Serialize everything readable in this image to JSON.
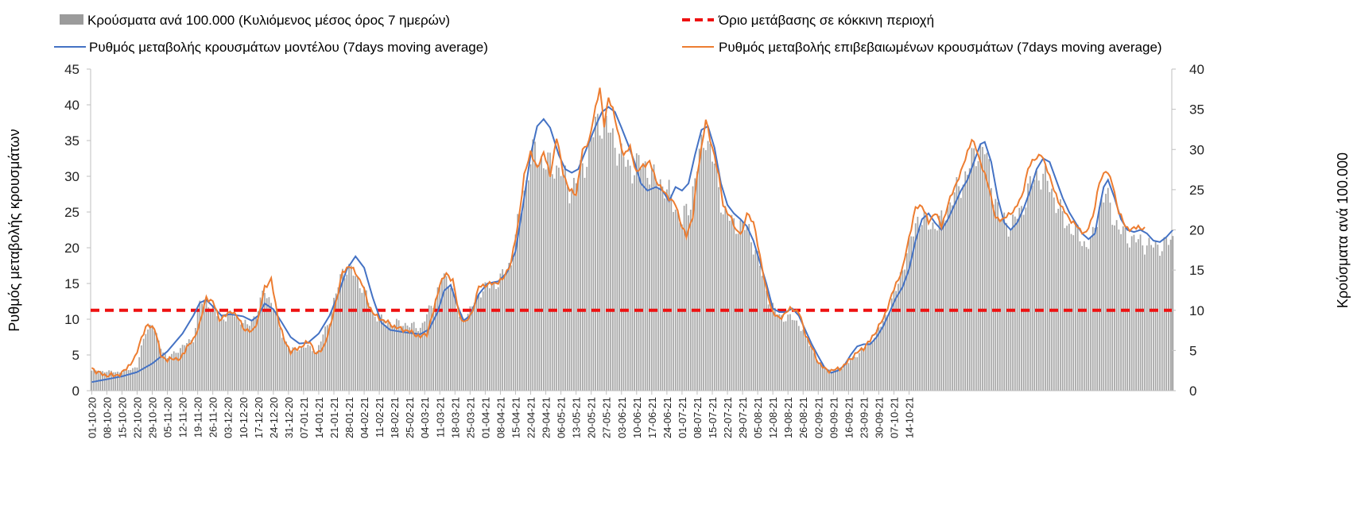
{
  "chart_data": {
    "type": "bar+line",
    "title": "",
    "legend": [
      {
        "key": "bars",
        "label": "Κρούσματα ανά 100.000 (Κυλιόμενος μέσος όρος 7 ημερών)"
      },
      {
        "key": "threshold",
        "label": "Όριο μετάβασης σε κόκκινη περιοχή"
      },
      {
        "key": "model",
        "label": "Ρυθμός μεταβολής κρουσμάτων μοντέλου (7days moving average)"
      },
      {
        "key": "confirmed",
        "label": "Ρυθμός μεταβολής επιβεβαιωμένων κρουσμάτων (7days moving average)"
      }
    ],
    "ylabel_left": "Ρυθμός μεταβολής κρουσμάτων",
    "ylabel_right": "Κρούσματα ανά 100.000",
    "ylim_left": [
      0,
      45
    ],
    "ylim_right": [
      0,
      40
    ],
    "yticks_left": [
      0,
      5,
      10,
      15,
      20,
      25,
      30,
      35,
      40,
      45
    ],
    "yticks_right": [
      0,
      5,
      10,
      15,
      20,
      25,
      30,
      35,
      40
    ],
    "x_start": "01-10-20",
    "x_days": 391,
    "x_tick_labels": [
      "01-10-20",
      "08-10-20",
      "15-10-20",
      "22-10-20",
      "29-10-20",
      "05-11-20",
      "12-11-20",
      "19-11-20",
      "26-11-20",
      "03-12-20",
      "10-12-20",
      "17-12-20",
      "24-12-20",
      "31-12-20",
      "07-01-21",
      "14-01-21",
      "21-01-21",
      "28-01-21",
      "04-02-21",
      "11-02-21",
      "18-02-21",
      "25-02-21",
      "04-03-21",
      "11-03-21",
      "18-03-21",
      "25-03-21",
      "01-04-21",
      "08-04-21",
      "15-04-21",
      "22-04-21",
      "29-04-21",
      "06-05-21",
      "13-05-21",
      "20-05-21",
      "27-05-21",
      "03-06-21",
      "10-06-21",
      "17-06-21",
      "24-06-21",
      "01-07-21",
      "08-07-21",
      "15-07-21",
      "22-07-21",
      "29-07-21",
      "05-08-21",
      "12-08-21",
      "19-08-21",
      "26-08-21",
      "02-09-21",
      "09-09-21",
      "16-09-21",
      "23-09-21",
      "30-09-21",
      "07-10-21",
      "14-10-21"
    ],
    "threshold_value": 10,
    "threshold_axis": "right",
    "model_knots_left": [
      [
        0,
        1.2
      ],
      [
        7,
        1.6
      ],
      [
        14,
        2.0
      ],
      [
        21,
        2.6
      ],
      [
        28,
        3.8
      ],
      [
        35,
        5.5
      ],
      [
        42,
        8.0
      ],
      [
        47,
        10.5
      ],
      [
        50,
        12.3
      ],
      [
        53,
        12.7
      ],
      [
        57,
        11.5
      ],
      [
        60,
        10.5
      ],
      [
        64,
        10.7
      ],
      [
        70,
        10.4
      ],
      [
        74,
        9.8
      ],
      [
        77,
        10.5
      ],
      [
        80,
        12.2
      ],
      [
        84,
        11.4
      ],
      [
        88,
        9.5
      ],
      [
        92,
        7.5
      ],
      [
        96,
        6.6
      ],
      [
        100,
        6.7
      ],
      [
        105,
        8.0
      ],
      [
        110,
        10.5
      ],
      [
        114,
        13.5
      ],
      [
        118,
        17.0
      ],
      [
        122,
        18.8
      ],
      [
        126,
        17.2
      ],
      [
        130,
        13.0
      ],
      [
        134,
        9.5
      ],
      [
        138,
        8.5
      ],
      [
        144,
        8.2
      ],
      [
        152,
        7.9
      ],
      [
        156,
        8.6
      ],
      [
        160,
        11.0
      ],
      [
        163,
        14.0
      ],
      [
        166,
        14.8
      ],
      [
        169,
        12.0
      ],
      [
        172,
        9.8
      ],
      [
        175,
        10.5
      ],
      [
        179,
        13.5
      ],
      [
        183,
        15.0
      ],
      [
        188,
        15.3
      ],
      [
        192,
        16.5
      ],
      [
        196,
        19.5
      ],
      [
        200,
        27.0
      ],
      [
        203,
        33.0
      ],
      [
        206,
        37.0
      ],
      [
        209,
        38.0
      ],
      [
        212,
        36.8
      ],
      [
        216,
        33.0
      ],
      [
        219,
        31.0
      ],
      [
        222,
        30.5
      ],
      [
        225,
        31.0
      ],
      [
        229,
        34.0
      ],
      [
        233,
        37.0
      ],
      [
        236,
        39.0
      ],
      [
        239,
        39.7
      ],
      [
        242,
        39.0
      ],
      [
        245,
        36.8
      ],
      [
        248,
        34.5
      ],
      [
        251,
        32.0
      ],
      [
        254,
        29.0
      ],
      [
        257,
        28.0
      ],
      [
        261,
        28.5
      ],
      [
        264,
        28.0
      ],
      [
        267,
        26.5
      ],
      [
        270,
        28.5
      ],
      [
        273,
        28.0
      ],
      [
        276,
        29.0
      ],
      [
        279,
        33.0
      ],
      [
        282,
        36.5
      ],
      [
        285,
        37.0
      ],
      [
        288,
        34.0
      ],
      [
        291,
        29.0
      ],
      [
        294,
        26.0
      ],
      [
        297,
        24.8
      ],
      [
        300,
        24.0
      ],
      [
        303,
        23.0
      ],
      [
        306,
        21.0
      ],
      [
        309,
        18.0
      ],
      [
        312,
        15.0
      ],
      [
        315,
        11.5
      ],
      [
        318,
        11.0
      ],
      [
        321,
        11.0
      ],
      [
        324,
        11.5
      ],
      [
        327,
        10.5
      ],
      [
        330,
        8.5
      ],
      [
        333,
        6.5
      ],
      [
        336,
        4.8
      ],
      [
        339,
        3.2
      ],
      [
        342,
        2.5
      ],
      [
        345,
        2.8
      ],
      [
        348,
        3.5
      ],
      [
        351,
        5.0
      ],
      [
        354,
        6.2
      ],
      [
        357,
        6.5
      ],
      [
        360,
        6.5
      ],
      [
        363,
        7.5
      ],
      [
        366,
        9.0
      ],
      [
        369,
        11.0
      ],
      [
        372,
        13.0
      ],
      [
        375,
        14.5
      ],
      [
        378,
        17.0
      ],
      [
        381,
        21.0
      ],
      [
        384,
        24.0
      ],
      [
        387,
        24.8
      ],
      [
        390,
        23.5
      ],
      [
        393,
        22.5
      ],
      [
        396,
        24.0
      ],
      [
        399,
        26.0
      ],
      [
        402,
        28.0
      ],
      [
        405,
        29.5
      ],
      [
        408,
        32.0
      ],
      [
        411,
        34.5
      ],
      [
        413,
        34.8
      ],
      [
        416,
        32.0
      ],
      [
        419,
        27.0
      ],
      [
        422,
        23.5
      ],
      [
        425,
        22.5
      ],
      [
        428,
        23.5
      ],
      [
        431,
        25.5
      ],
      [
        434,
        28.0
      ],
      [
        437,
        31.0
      ],
      [
        440,
        32.5
      ],
      [
        443,
        32.0
      ],
      [
        446,
        29.5
      ],
      [
        449,
        27.0
      ],
      [
        452,
        25.0
      ],
      [
        455,
        23.5
      ],
      [
        458,
        22.0
      ],
      [
        461,
        21.2
      ],
      [
        464,
        22.0
      ],
      [
        466,
        25.5
      ],
      [
        468,
        28.5
      ],
      [
        470,
        29.5
      ],
      [
        473,
        27.0
      ],
      [
        476,
        24.0
      ],
      [
        479,
        22.5
      ],
      [
        482,
        22.2
      ],
      [
        485,
        22.5
      ],
      [
        488,
        22.0
      ],
      [
        491,
        21.0
      ],
      [
        494,
        20.8
      ],
      [
        497,
        21.5
      ],
      [
        500,
        22.5
      ]
    ],
    "confirmed_knots_left": [
      [
        0,
        3.2
      ],
      [
        3,
        2.5
      ],
      [
        6,
        2.2
      ],
      [
        10,
        2.1
      ],
      [
        14,
        2.4
      ],
      [
        17,
        3.5
      ],
      [
        20,
        4.5
      ],
      [
        23,
        7.5
      ],
      [
        26,
        9.2
      ],
      [
        29,
        8.8
      ],
      [
        32,
        5.0
      ],
      [
        35,
        4.2
      ],
      [
        38,
        4.6
      ],
      [
        41,
        4.3
      ],
      [
        44,
        6.2
      ],
      [
        47,
        7.0
      ],
      [
        50,
        9.5
      ],
      [
        53,
        13.0
      ],
      [
        56,
        12.5
      ],
      [
        59,
        10.0
      ],
      [
        62,
        10.5
      ],
      [
        65,
        11.2
      ],
      [
        68,
        10.0
      ],
      [
        71,
        8.5
      ],
      [
        74,
        8.2
      ],
      [
        77,
        10.0
      ],
      [
        80,
        14.5
      ],
      [
        83,
        15.5
      ],
      [
        86,
        10.5
      ],
      [
        89,
        7.0
      ],
      [
        92,
        5.5
      ],
      [
        95,
        5.8
      ],
      [
        98,
        6.5
      ],
      [
        101,
        6.8
      ],
      [
        104,
        5.0
      ],
      [
        107,
        6.0
      ],
      [
        110,
        8.5
      ],
      [
        113,
        12.5
      ],
      [
        116,
        16.5
      ],
      [
        119,
        17.5
      ],
      [
        122,
        16.5
      ],
      [
        125,
        15.0
      ],
      [
        128,
        12.0
      ],
      [
        131,
        10.5
      ],
      [
        134,
        10.0
      ],
      [
        137,
        9.5
      ],
      [
        141,
        8.8
      ],
      [
        145,
        8.5
      ],
      [
        149,
        8.0
      ],
      [
        152,
        7.5
      ],
      [
        155,
        8.0
      ],
      [
        158,
        11.0
      ],
      [
        161,
        15.0
      ],
      [
        164,
        16.3
      ],
      [
        167,
        15.5
      ],
      [
        170,
        10.5
      ],
      [
        173,
        9.5
      ],
      [
        176,
        11.0
      ],
      [
        179,
        14.5
      ],
      [
        182,
        14.8
      ],
      [
        186,
        15.0
      ],
      [
        190,
        15.5
      ],
      [
        194,
        18.0
      ],
      [
        197,
        23.0
      ],
      [
        200,
        30.0
      ],
      [
        203,
        33.5
      ],
      [
        206,
        31.0
      ],
      [
        209,
        33.5
      ],
      [
        212,
        30.0
      ],
      [
        215,
        35.5
      ],
      [
        218,
        30.5
      ],
      [
        221,
        28.0
      ],
      [
        224,
        27.5
      ],
      [
        227,
        33.5
      ],
      [
        230,
        35.0
      ],
      [
        233,
        39.5
      ],
      [
        235,
        42.5
      ],
      [
        237,
        37.0
      ],
      [
        239,
        41.0
      ],
      [
        241,
        39.5
      ],
      [
        243,
        36.5
      ],
      [
        246,
        33.0
      ],
      [
        249,
        34.0
      ],
      [
        252,
        30.5
      ],
      [
        255,
        31.5
      ],
      [
        258,
        32.0
      ],
      [
        261,
        29.5
      ],
      [
        264,
        28.0
      ],
      [
        267,
        27.0
      ],
      [
        270,
        26.0
      ],
      [
        273,
        23.0
      ],
      [
        275,
        21.5
      ],
      [
        278,
        24.5
      ],
      [
        280,
        30.0
      ],
      [
        282,
        34.0
      ],
      [
        284,
        38.0
      ],
      [
        286,
        35.0
      ],
      [
        288,
        33.0
      ],
      [
        290,
        30.0
      ],
      [
        292,
        26.0
      ],
      [
        295,
        24.5
      ],
      [
        298,
        22.5
      ],
      [
        301,
        22.0
      ],
      [
        303,
        25.0
      ],
      [
        306,
        23.5
      ],
      [
        309,
        19.0
      ],
      [
        312,
        14.0
      ],
      [
        315,
        11.0
      ],
      [
        318,
        10.0
      ],
      [
        321,
        11.0
      ],
      [
        324,
        11.5
      ],
      [
        327,
        11.0
      ],
      [
        330,
        8.0
      ],
      [
        333,
        6.0
      ],
      [
        336,
        4.0
      ],
      [
        339,
        3.0
      ],
      [
        342,
        2.8
      ],
      [
        345,
        3.0
      ],
      [
        348,
        3.5
      ],
      [
        351,
        4.5
      ],
      [
        354,
        5.3
      ],
      [
        357,
        6.0
      ],
      [
        360,
        7.0
      ],
      [
        363,
        8.5
      ],
      [
        366,
        10.0
      ],
      [
        369,
        12.5
      ],
      [
        372,
        15.0
      ],
      [
        375,
        17.0
      ],
      [
        378,
        21.5
      ],
      [
        381,
        25.5
      ],
      [
        384,
        26.0
      ],
      [
        387,
        23.5
      ],
      [
        390,
        25.0
      ],
      [
        393,
        23.0
      ],
      [
        396,
        26.0
      ],
      [
        399,
        28.5
      ],
      [
        402,
        30.5
      ],
      [
        405,
        33.5
      ],
      [
        407,
        35.0
      ],
      [
        409,
        34.0
      ],
      [
        412,
        31.0
      ],
      [
        415,
        28.5
      ],
      [
        418,
        24.0
      ],
      [
        421,
        24.0
      ],
      [
        424,
        24.5
      ],
      [
        427,
        25.5
      ],
      [
        430,
        27.0
      ],
      [
        433,
        31.0
      ],
      [
        436,
        32.5
      ],
      [
        439,
        33.0
      ],
      [
        442,
        31.0
      ],
      [
        445,
        28.0
      ],
      [
        448,
        26.0
      ],
      [
        451,
        24.5
      ],
      [
        454,
        23.5
      ],
      [
        457,
        22.5
      ],
      [
        460,
        22.0
      ],
      [
        463,
        24.5
      ],
      [
        466,
        29.0
      ],
      [
        469,
        31.0
      ],
      [
        472,
        29.0
      ],
      [
        475,
        25.0
      ],
      [
        478,
        23.0
      ],
      [
        481,
        22.5
      ],
      [
        484,
        23.0
      ],
      [
        487,
        22.5
      ]
    ],
    "bars_knots_right": [
      [
        0,
        2.5
      ],
      [
        14,
        2.3
      ],
      [
        21,
        3.0
      ],
      [
        25,
        7.5
      ],
      [
        28,
        8.3
      ],
      [
        31,
        6.0
      ],
      [
        35,
        4.0
      ],
      [
        42,
        5.5
      ],
      [
        47,
        6.5
      ],
      [
        50,
        11.0
      ],
      [
        54,
        11.0
      ],
      [
        59,
        9.0
      ],
      [
        66,
        9.5
      ],
      [
        72,
        8.0
      ],
      [
        76,
        9.5
      ],
      [
        80,
        12.5
      ],
      [
        84,
        10.5
      ],
      [
        88,
        7.0
      ],
      [
        92,
        5.0
      ],
      [
        100,
        5.5
      ],
      [
        104,
        4.8
      ],
      [
        110,
        9.0
      ],
      [
        116,
        15.0
      ],
      [
        120,
        15.0
      ],
      [
        126,
        12.5
      ],
      [
        130,
        9.5
      ],
      [
        136,
        8.5
      ],
      [
        145,
        8.3
      ],
      [
        152,
        7.8
      ],
      [
        158,
        11.0
      ],
      [
        162,
        14.0
      ],
      [
        166,
        13.5
      ],
      [
        170,
        9.0
      ],
      [
        174,
        9.5
      ],
      [
        180,
        12.5
      ],
      [
        188,
        13.5
      ],
      [
        194,
        16.0
      ],
      [
        198,
        22.0
      ],
      [
        202,
        27.5
      ],
      [
        205,
        30.0
      ],
      [
        208,
        28.5
      ],
      [
        212,
        28.0
      ],
      [
        217,
        27.5
      ],
      [
        221,
        25.0
      ],
      [
        225,
        26.5
      ],
      [
        229,
        29.0
      ],
      [
        233,
        33.0
      ],
      [
        236,
        33.5
      ],
      [
        240,
        32.0
      ],
      [
        245,
        29.0
      ],
      [
        250,
        27.5
      ],
      [
        255,
        28.5
      ],
      [
        259,
        26.5
      ],
      [
        263,
        26.0
      ],
      [
        268,
        24.0
      ],
      [
        273,
        21.0
      ],
      [
        277,
        23.5
      ],
      [
        280,
        28.0
      ],
      [
        284,
        32.0
      ],
      [
        288,
        28.0
      ],
      [
        292,
        22.5
      ],
      [
        296,
        21.0
      ],
      [
        300,
        20.5
      ],
      [
        304,
        20.0
      ],
      [
        309,
        15.5
      ],
      [
        314,
        10.5
      ],
      [
        320,
        9.0
      ],
      [
        325,
        9.0
      ],
      [
        330,
        7.0
      ],
      [
        336,
        3.5
      ],
      [
        342,
        2.4
      ],
      [
        348,
        3.0
      ],
      [
        354,
        4.5
      ],
      [
        360,
        6.0
      ],
      [
        366,
        8.5
      ],
      [
        372,
        12.5
      ],
      [
        378,
        18.0
      ],
      [
        382,
        21.5
      ],
      [
        388,
        20.5
      ],
      [
        393,
        21.0
      ],
      [
        398,
        24.0
      ],
      [
        402,
        25.5
      ],
      [
        406,
        28.0
      ],
      [
        410,
        30.0
      ],
      [
        413,
        30.0
      ],
      [
        416,
        26.0
      ],
      [
        420,
        21.5
      ],
      [
        425,
        20.5
      ],
      [
        430,
        22.5
      ],
      [
        434,
        25.5
      ],
      [
        438,
        27.0
      ],
      [
        442,
        26.0
      ],
      [
        446,
        23.5
      ],
      [
        450,
        21.0
      ],
      [
        456,
        19.5
      ],
      [
        460,
        18.0
      ],
      [
        463,
        19.0
      ],
      [
        466,
        23.0
      ],
      [
        469,
        24.5
      ],
      [
        472,
        22.0
      ],
      [
        475,
        20.0
      ],
      [
        480,
        19.0
      ],
      [
        485,
        18.5
      ],
      [
        490,
        18.0
      ],
      [
        495,
        18.0
      ],
      [
        500,
        18.8
      ]
    ]
  }
}
